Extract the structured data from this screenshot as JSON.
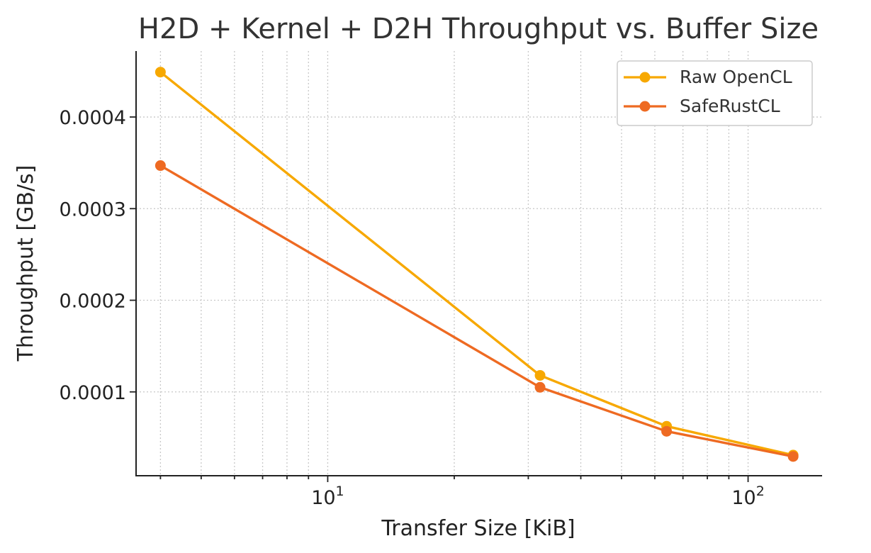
{
  "chart_data": {
    "type": "line",
    "title": "H2D + Kernel + D2H Throughput vs. Buffer Size",
    "xlabel": "Transfer Size [KiB]",
    "ylabel": "Throughput [GB/s]",
    "xscale": "log",
    "xlim": [
      3.5,
      150
    ],
    "ylim": [
      8.5e-06,
      0.000472
    ],
    "x": [
      4,
      32,
      64,
      128
    ],
    "xticks": [
      {
        "value": 10,
        "base": "10",
        "exp": "1"
      },
      {
        "value": 100,
        "base": "10",
        "exp": "2"
      }
    ],
    "yticks": [
      {
        "value": 0.0001,
        "label": "0.0001"
      },
      {
        "value": 0.0002,
        "label": "0.0002"
      },
      {
        "value": 0.0003,
        "label": "0.0003"
      },
      {
        "value": 0.0004,
        "label": "0.0004"
      }
    ],
    "series": [
      {
        "name": "Raw OpenCL",
        "color": "#F7A800",
        "values": [
          0.000449,
          0.000118,
          6.25e-05,
          3.1e-05
        ]
      },
      {
        "name": "SafeRustCL",
        "color": "#EE6A22",
        "values": [
          0.000347,
          0.000105,
          5.7e-05,
          2.95e-05
        ]
      }
    ],
    "grid": true,
    "legend_position": "top-right"
  }
}
